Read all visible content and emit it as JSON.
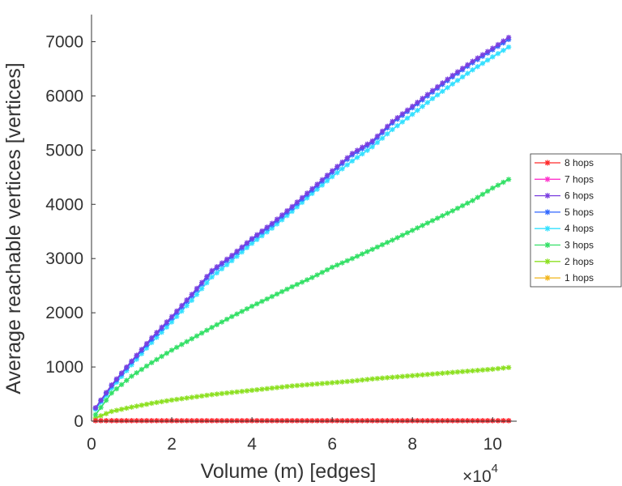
{
  "chart_data": {
    "type": "line",
    "title": "",
    "xlabel": "Volume (m) [edges]",
    "ylabel": "Average reachable vertices [vertices]",
    "x_multiplier_label": "×10",
    "x_multiplier_exponent": "4",
    "xlim": [
      0,
      10.6
    ],
    "ylim": [
      0,
      7500
    ],
    "xticks": [
      0,
      2,
      4,
      6,
      8,
      10
    ],
    "xtick_labels": [
      "0",
      "2",
      "4",
      "6",
      "8",
      "10"
    ],
    "yticks": [
      0,
      1000,
      2000,
      3000,
      4000,
      5000,
      6000,
      7000
    ],
    "ytick_labels": [
      "0",
      "1000",
      "2000",
      "3000",
      "4000",
      "5000",
      "6000",
      "7000"
    ],
    "grid": false,
    "legend_position": "right",
    "x": [
      0.1,
      0.5,
      1,
      1.5,
      2,
      2.5,
      3,
      3.5,
      4,
      4.5,
      5,
      5.5,
      6,
      6.5,
      7,
      7.5,
      8,
      8.5,
      9,
      9.5,
      10,
      10.4
    ],
    "series": [
      {
        "name": "8 hops",
        "color": "#ff2a2a",
        "values": [
          10,
          10,
          10,
          10,
          10,
          10,
          10,
          10,
          10,
          10,
          10,
          10,
          10,
          10,
          10,
          10,
          10,
          10,
          10,
          10,
          10,
          10
        ]
      },
      {
        "name": "7 hops",
        "color": "#ff33cc",
        "values": [
          10,
          10,
          10,
          10,
          10,
          10,
          10,
          10,
          10,
          10,
          10,
          10,
          10,
          10,
          10,
          10,
          10,
          10,
          10,
          10,
          10,
          10
        ]
      },
      {
        "name": "6 hops",
        "color": "#7b3fe0",
        "values": [
          250,
          670,
          1110,
          1540,
          1930,
          2340,
          2780,
          3060,
          3370,
          3650,
          3960,
          4290,
          4620,
          4940,
          5170,
          5530,
          5810,
          6100,
          6380,
          6640,
          6880,
          7080
        ]
      },
      {
        "name": "5 hops",
        "color": "#2f66ff",
        "values": [
          240,
          650,
          1090,
          1510,
          1900,
          2310,
          2750,
          3030,
          3350,
          3620,
          3930,
          4260,
          4590,
          4910,
          5140,
          5500,
          5780,
          6070,
          6350,
          6610,
          6850,
          7040
        ]
      },
      {
        "name": "4 hops",
        "color": "#33e0ff",
        "values": [
          220,
          610,
          1040,
          1450,
          1830,
          2230,
          2660,
          2960,
          3280,
          3560,
          3870,
          4200,
          4510,
          4800,
          5060,
          5380,
          5660,
          5950,
          6220,
          6480,
          6720,
          6900
        ]
      },
      {
        "name": "3 hops",
        "color": "#33e066",
        "values": [
          120,
          520,
          830,
          1080,
          1310,
          1520,
          1730,
          1930,
          2120,
          2300,
          2480,
          2650,
          2840,
          3000,
          3170,
          3340,
          3520,
          3700,
          3880,
          4070,
          4300,
          4460
        ]
      },
      {
        "name": "2 hops",
        "color": "#8ce020",
        "values": [
          60,
          180,
          260,
          330,
          390,
          440,
          490,
          530,
          570,
          610,
          650,
          680,
          710,
          740,
          780,
          810,
          840,
          870,
          900,
          930,
          960,
          990
        ]
      },
      {
        "name": "1 hops",
        "color": "#f2b51a",
        "values": [
          10,
          10,
          10,
          10,
          10,
          10,
          10,
          10,
          10,
          10,
          10,
          10,
          10,
          10,
          10,
          10,
          10,
          10,
          10,
          10,
          10,
          10
        ]
      }
    ]
  }
}
